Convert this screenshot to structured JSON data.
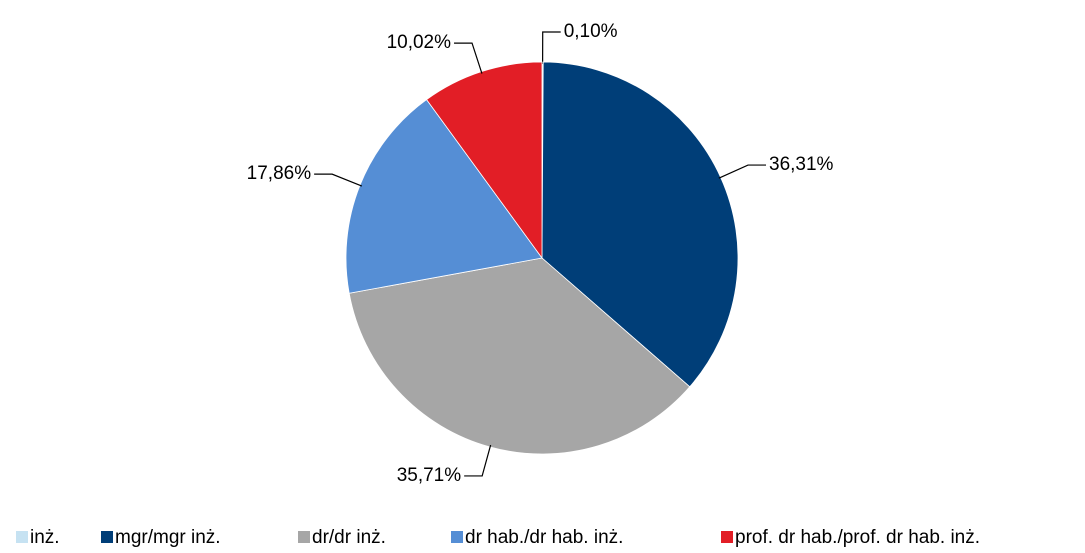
{
  "chart_data": {
    "type": "pie",
    "categories": [
      "inż.",
      "mgr/mgr inż.",
      "dr/dr inż.",
      "dr hab./dr hab. inż.",
      "prof. dr hab./prof. dr hab. inż."
    ],
    "values": [
      0.1,
      36.31,
      35.71,
      17.86,
      10.02
    ],
    "value_labels": [
      "0,10%",
      "36,31%",
      "35,71%",
      "17,86%",
      "10,02%"
    ],
    "colors": [
      "#c6e2f2",
      "#003e78",
      "#a6a6a6",
      "#558ed5",
      "#e21e26"
    ],
    "legend": "bottom"
  }
}
